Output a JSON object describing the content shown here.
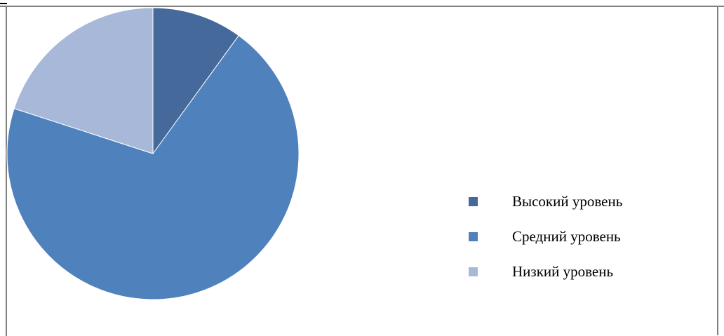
{
  "chart_data": {
    "type": "pie",
    "title": "",
    "categories": [
      "Высокий уровень",
      "Средний уровень",
      "Низкий уровень"
    ],
    "values": [
      10,
      70,
      20
    ],
    "colors": [
      "#44699a",
      "#4f81bd",
      "#a7b8d8"
    ],
    "legend_position": "right",
    "start_angle": "12 o'clock",
    "direction": "clockwise"
  }
}
